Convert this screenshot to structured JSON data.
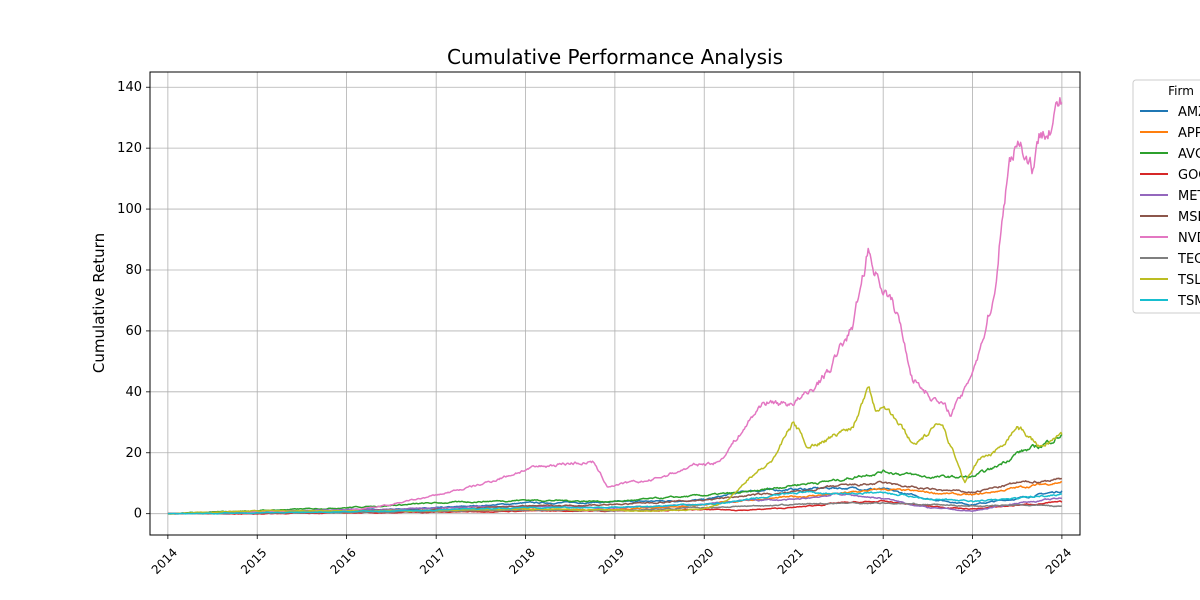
{
  "chart_data": {
    "type": "line",
    "title": "Cumulative Performance Analysis",
    "xlabel": "",
    "ylabel": "Cumulative Return",
    "xlim": [
      "2013-10-20",
      "2024-03-15"
    ],
    "ylim": [
      -7,
      145
    ],
    "x_ticks": [
      "2014",
      "2015",
      "2016",
      "2017",
      "2018",
      "2019",
      "2020",
      "2021",
      "2022",
      "2023",
      "2024"
    ],
    "y_ticks": [
      0,
      20,
      40,
      60,
      80,
      100,
      120,
      140
    ],
    "grid": true,
    "legend": {
      "title": "Firm",
      "placement": "outside-right"
    },
    "series": [
      {
        "name": "AMZN",
        "color": "#1f77b4",
        "x": [
          "2014-01",
          "2015-01",
          "2016-01",
          "2017-01",
          "2018-01",
          "2019-01",
          "2020-01",
          "2020-07",
          "2021-01",
          "2021-07",
          "2022-01",
          "2022-07",
          "2023-01",
          "2023-07",
          "2024-01"
        ],
        "y": [
          0,
          0,
          1.2,
          1.8,
          3.5,
          3.8,
          4.5,
          7.5,
          8.0,
          8.5,
          8.0,
          5.0,
          3.0,
          5.0,
          7.5
        ]
      },
      {
        "name": "APPL",
        "color": "#ff7f0e",
        "x": [
          "2014-01",
          "2015-01",
          "2016-01",
          "2017-01",
          "2018-01",
          "2019-01",
          "2020-01",
          "2020-07",
          "2021-01",
          "2021-07",
          "2022-01",
          "2022-07",
          "2023-01",
          "2023-07",
          "2024-01"
        ],
        "y": [
          0,
          0.3,
          0.4,
          0.8,
          1.5,
          1.2,
          3.0,
          4.5,
          5.5,
          6.5,
          8.0,
          7.0,
          6.0,
          8.5,
          10.5
        ]
      },
      {
        "name": "AVGO",
        "color": "#2ca02c",
        "x": [
          "2014-01",
          "2015-01",
          "2016-01",
          "2017-01",
          "2018-01",
          "2019-01",
          "2020-01",
          "2020-07",
          "2021-01",
          "2021-07",
          "2022-01",
          "2022-07",
          "2023-01",
          "2023-04",
          "2023-07",
          "2023-10",
          "2024-01"
        ],
        "y": [
          0,
          1.0,
          2.0,
          3.5,
          4.5,
          4.0,
          6.0,
          7.0,
          9.5,
          11.0,
          14.0,
          12.0,
          12.0,
          15.0,
          20.0,
          22.0,
          26.0
        ]
      },
      {
        "name": "GOOG",
        "color": "#d62728",
        "x": [
          "2014-01",
          "2015-01",
          "2016-01",
          "2017-01",
          "2018-01",
          "2019-01",
          "2020-01",
          "2020-07",
          "2021-01",
          "2021-07",
          "2022-01",
          "2022-07",
          "2023-01",
          "2023-07",
          "2024-01"
        ],
        "y": [
          0,
          0,
          0.3,
          0.5,
          0.9,
          0.9,
          1.3,
          1.2,
          2.0,
          3.5,
          4.0,
          2.5,
          1.5,
          2.8,
          3.8
        ]
      },
      {
        "name": "META",
        "color": "#9467bd",
        "x": [
          "2014-01",
          "2015-01",
          "2016-01",
          "2017-01",
          "2018-01",
          "2019-01",
          "2020-01",
          "2020-07",
          "2021-01",
          "2021-07",
          "2022-01",
          "2022-07",
          "2023-01",
          "2023-07",
          "2024-01"
        ],
        "y": [
          0,
          0.8,
          1.3,
          1.8,
          2.5,
          2.0,
          3.0,
          4.5,
          4.5,
          6.5,
          5.0,
          2.0,
          0.8,
          3.5,
          5.0
        ]
      },
      {
        "name": "MSFT",
        "color": "#8c564b",
        "x": [
          "2014-01",
          "2015-01",
          "2016-01",
          "2017-01",
          "2018-01",
          "2019-01",
          "2020-01",
          "2020-07",
          "2021-01",
          "2021-07",
          "2022-01",
          "2022-07",
          "2023-01",
          "2023-07",
          "2024-01"
        ],
        "y": [
          0,
          0.4,
          0.9,
          1.3,
          2.5,
          3.0,
          4.5,
          6.0,
          7.0,
          9.0,
          10.0,
          8.0,
          7.0,
          10.0,
          11.5
        ]
      },
      {
        "name": "NVDA",
        "color": "#e377c2",
        "x": [
          "2014-01",
          "2015-01",
          "2016-01",
          "2016-07",
          "2017-01",
          "2017-07",
          "2018-01",
          "2018-06",
          "2018-10",
          "2018-12",
          "2019-06",
          "2019-12",
          "2020-03",
          "2020-06",
          "2020-09",
          "2020-12",
          "2021-03",
          "2021-06",
          "2021-09",
          "2021-11",
          "2021-12",
          "2022-01",
          "2022-03",
          "2022-05",
          "2022-07",
          "2022-10",
          "2022-12",
          "2023-02",
          "2023-04",
          "2023-05",
          "2023-06",
          "2023-07",
          "2023-09",
          "2023-11",
          "2024-01"
        ],
        "y": [
          0,
          0.5,
          1.0,
          3.0,
          6.0,
          9.5,
          14.5,
          16.5,
          17.0,
          9.0,
          11.0,
          16.0,
          17.0,
          27.0,
          37.0,
          36.0,
          39.0,
          48.0,
          62.0,
          87.0,
          80.0,
          75.0,
          65.0,
          45.0,
          40.0,
          33.0,
          40.0,
          55.0,
          72.0,
          100.0,
          115.0,
          125.0,
          115.0,
          130.0,
          135.0
        ]
      },
      {
        "name": "TECH",
        "color": "#7f7f7f",
        "x": [
          "2014-01",
          "2015-01",
          "2016-01",
          "2017-01",
          "2018-01",
          "2019-01",
          "2020-01",
          "2020-07",
          "2021-01",
          "2021-07",
          "2022-01",
          "2022-07",
          "2023-01",
          "2023-07",
          "2024-01"
        ],
        "y": [
          0,
          0.2,
          0.4,
          0.8,
          1.2,
          1.0,
          2.0,
          2.5,
          3.0,
          3.5,
          3.5,
          3.0,
          2.5,
          2.8,
          2.5
        ]
      },
      {
        "name": "TSLA",
        "color": "#bcbd22",
        "x": [
          "2014-01",
          "2015-01",
          "2016-01",
          "2017-01",
          "2018-01",
          "2019-01",
          "2019-06",
          "2020-01",
          "2020-04",
          "2020-07",
          "2020-10",
          "2021-01",
          "2021-03",
          "2021-06",
          "2021-09",
          "2021-11",
          "2021-12",
          "2022-01",
          "2022-03",
          "2022-05",
          "2022-07",
          "2022-09",
          "2022-12",
          "2023-02",
          "2023-04",
          "2023-07",
          "2023-10",
          "2024-01"
        ],
        "y": [
          0,
          1.0,
          0.8,
          1.0,
          1.5,
          1.2,
          0.8,
          1.5,
          4.0,
          12.0,
          17.0,
          30.0,
          22.0,
          25.0,
          29.0,
          43.0,
          35.0,
          37.0,
          30.0,
          23.0,
          26.0,
          30.0,
          10.0,
          18.0,
          20.0,
          29.0,
          22.0,
          26.0
        ]
      },
      {
        "name": "TSM",
        "color": "#17becf",
        "x": [
          "2014-01",
          "2015-01",
          "2016-01",
          "2017-01",
          "2018-01",
          "2019-01",
          "2020-01",
          "2020-07",
          "2021-01",
          "2021-07",
          "2022-01",
          "2022-07",
          "2023-01",
          "2023-07",
          "2024-01"
        ],
        "y": [
          0,
          0.3,
          0.6,
          1.2,
          2.0,
          2.0,
          3.0,
          4.5,
          7.0,
          6.5,
          7.0,
          5.0,
          4.0,
          5.0,
          6.5
        ]
      }
    ]
  }
}
